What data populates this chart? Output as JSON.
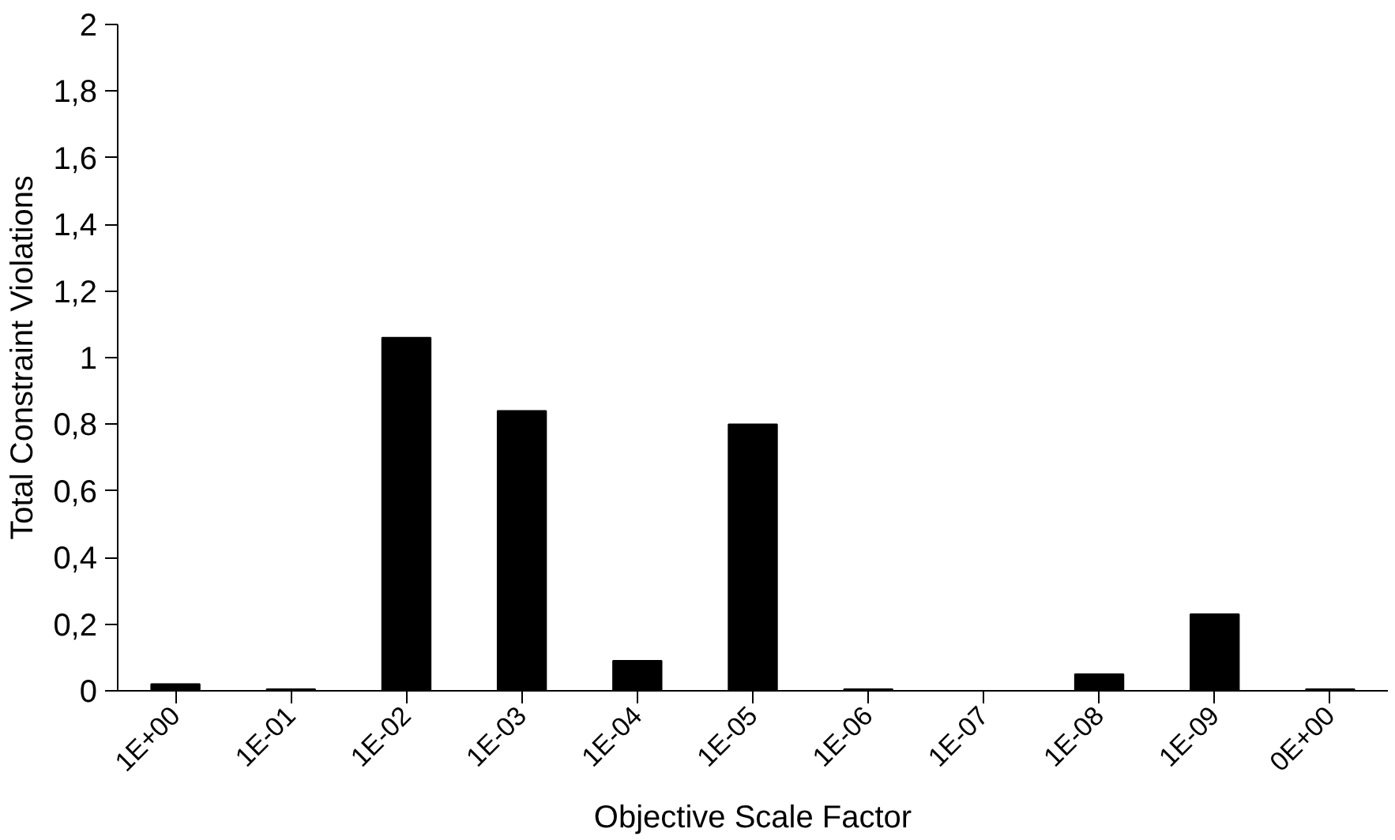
{
  "chart_data": {
    "type": "bar",
    "xlabel": "Objective Scale Factor",
    "ylabel": "Total Constraint Violations",
    "categories": [
      "1E+00",
      "1E-01",
      "1E-02",
      "1E-03",
      "1E-04",
      "1E-05",
      "1E-06",
      "1E-07",
      "1E-08",
      "1E-09",
      "0E+00"
    ],
    "values": [
      0.02,
      0.005,
      1.06,
      0.84,
      0.09,
      0.8,
      0.005,
      0,
      0.05,
      0.23,
      0.005
    ],
    "color": "#000000",
    "ylim": [
      0,
      2
    ],
    "yticks": [
      0,
      {
        "value": 0.2,
        "label": "0,2"
      },
      {
        "value": 0.4,
        "label": "0,4"
      },
      {
        "value": 0.6,
        "label": "0,6"
      },
      {
        "value": 0.8,
        "label": "0,8"
      },
      1,
      {
        "value": 1.2,
        "label": "1,2"
      },
      {
        "value": 1.4,
        "label": "1,4"
      },
      {
        "value": 1.6,
        "label": "1,6"
      },
      {
        "value": 1.8,
        "label": "1,8"
      },
      2
    ],
    "grid": false
  }
}
